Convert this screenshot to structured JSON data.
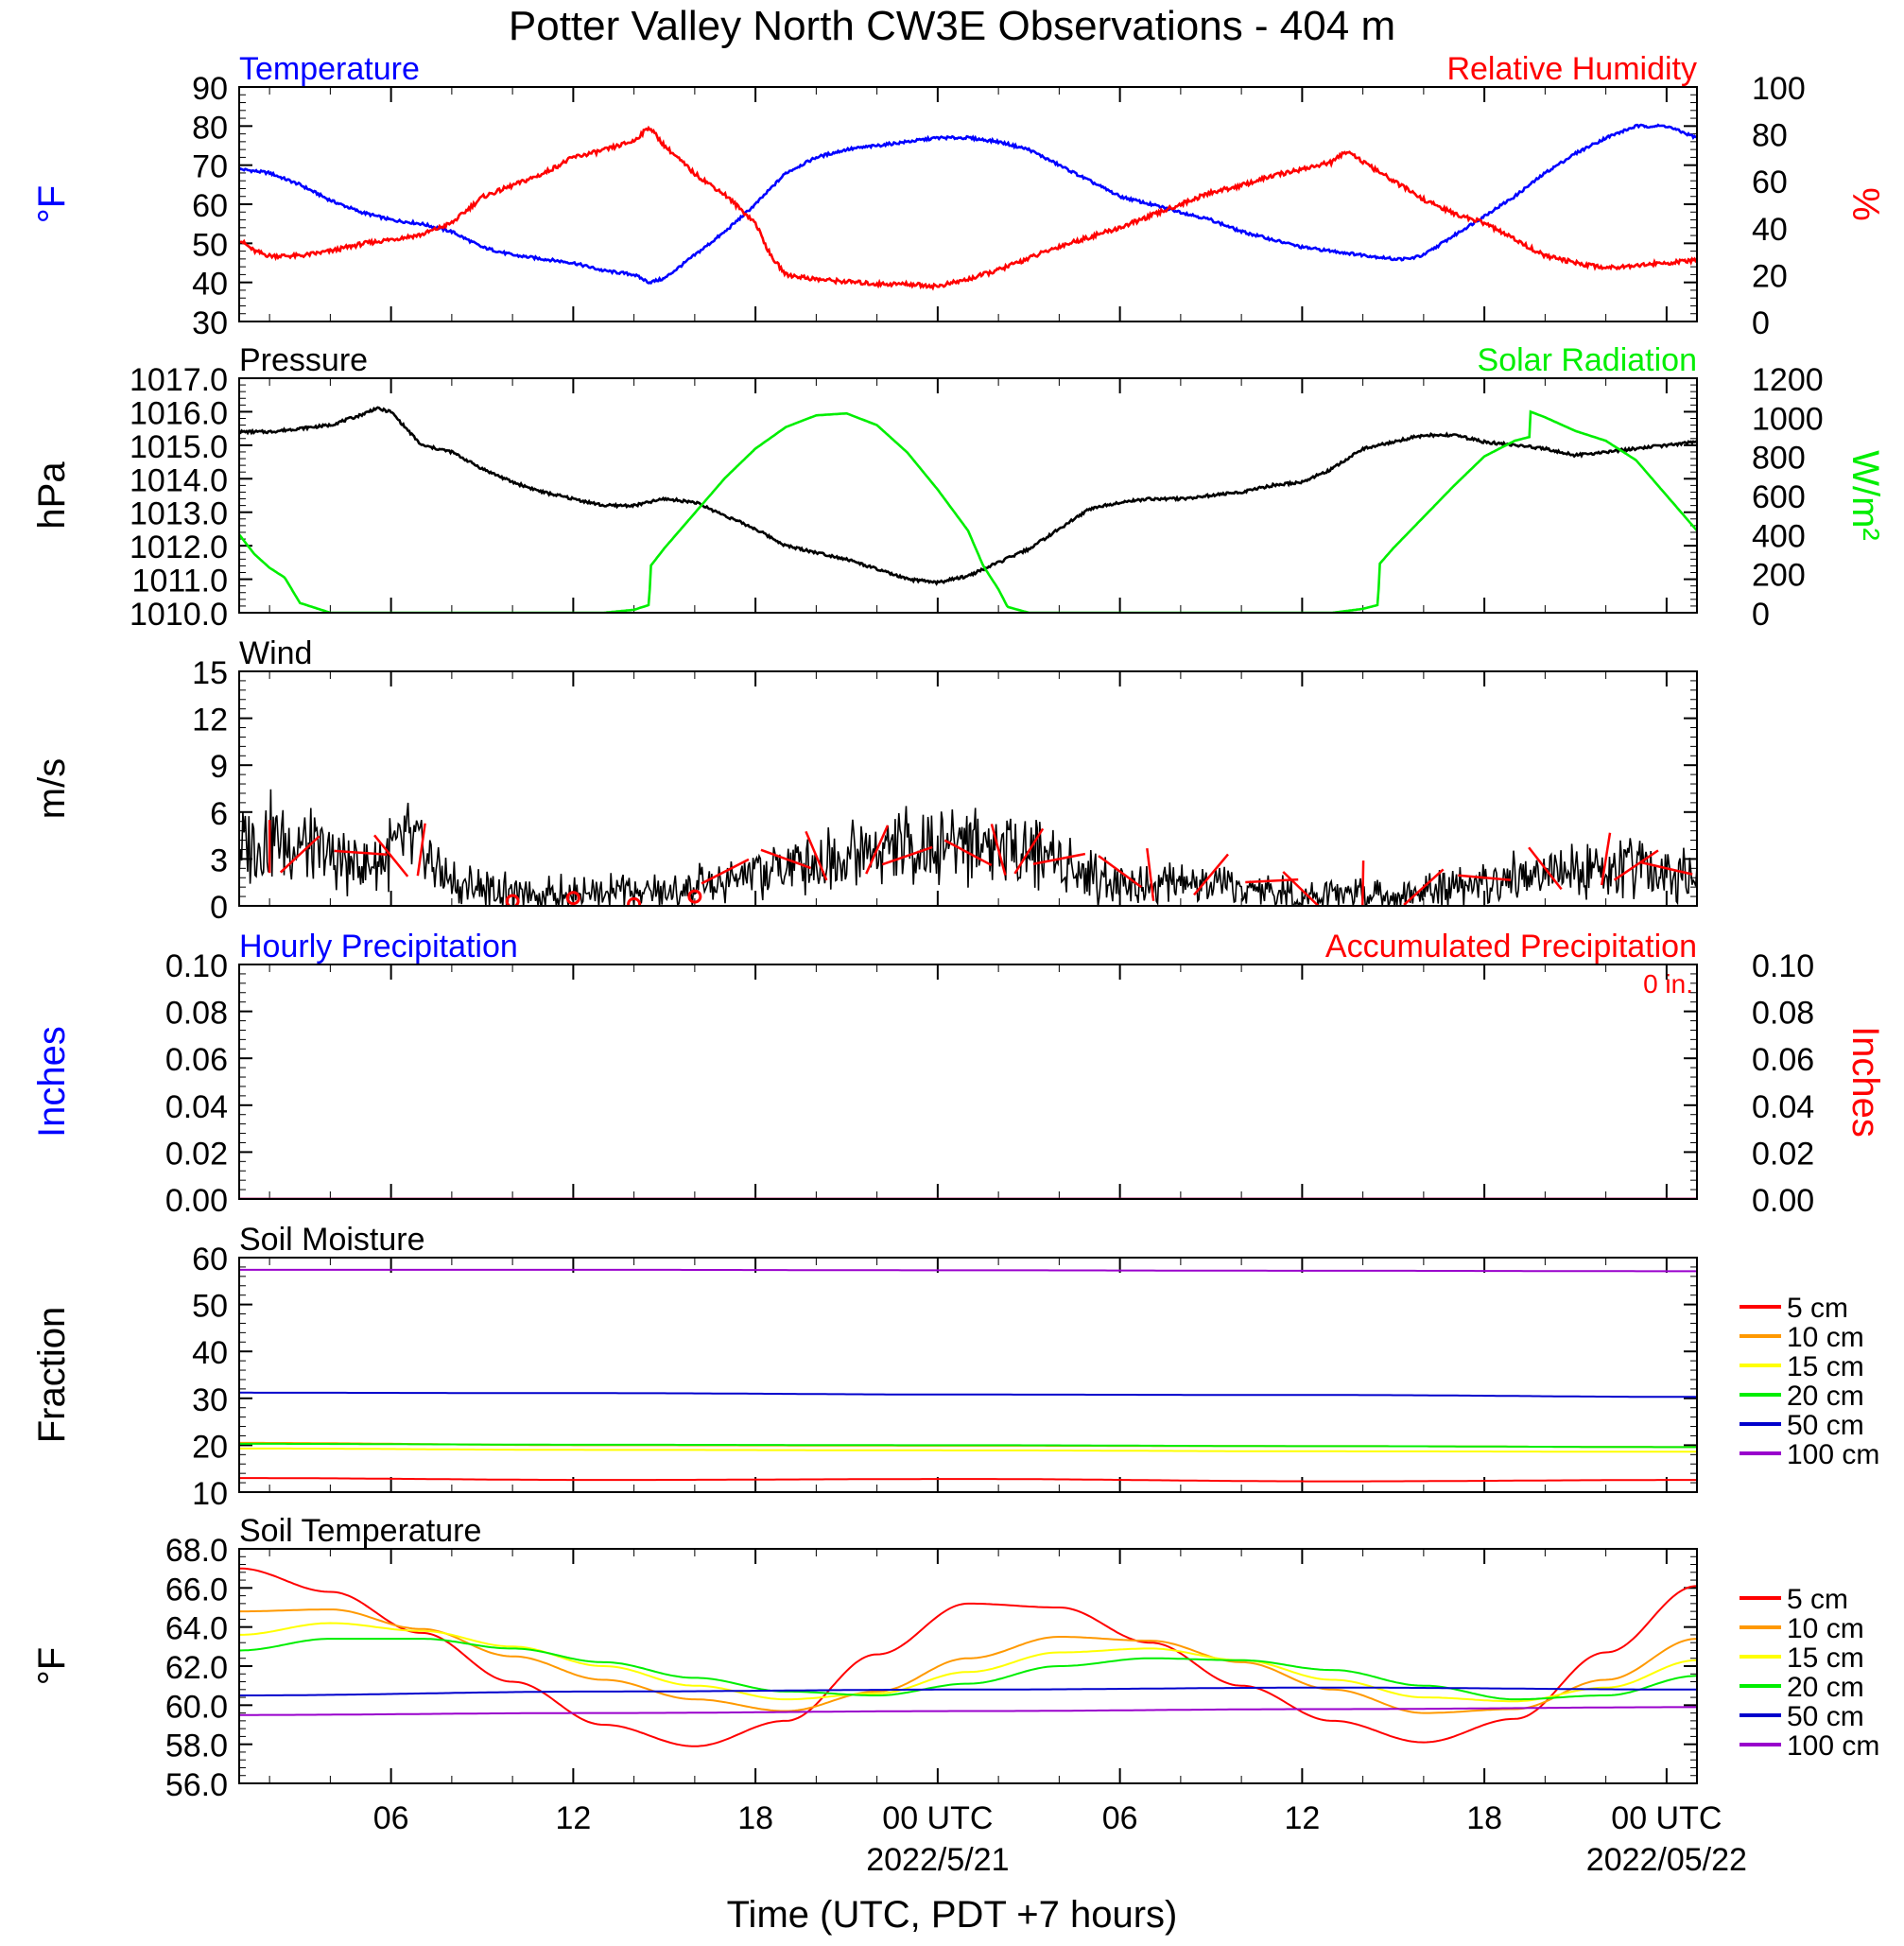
{
  "figure": {
    "title": "Potter Valley North CW3E Observations - 404 m",
    "xlabel": "Time (UTC, PDT +7 hours)"
  },
  "time_axis": {
    "unit": "hours since 2022-05-20 00 UTC",
    "range": [
      1,
      49
    ],
    "ticks": [
      {
        "label": "06",
        "sub": ""
      },
      {
        "label": "12",
        "sub": ""
      },
      {
        "label": "18",
        "sub": ""
      },
      {
        "label": "00 UTC",
        "sub": "2022/5/21"
      },
      {
        "label": "06",
        "sub": ""
      },
      {
        "label": "12",
        "sub": ""
      },
      {
        "label": "18",
        "sub": ""
      },
      {
        "label": "00 UTC",
        "sub": "2022/05/22"
      }
    ],
    "tick_hours": [
      6,
      12,
      18,
      24,
      30,
      36,
      42,
      48
    ]
  },
  "colors": {
    "blue": "#0000ff",
    "red": "#ff0000",
    "green": "#00ee00",
    "black": "#000000",
    "orange": "#ff9900",
    "yellow": "#ffff00",
    "purple": "#9900cc"
  },
  "chart_data": [
    {
      "type": "line",
      "title_left": "Temperature",
      "title_right": "Relative Humidity",
      "ylabel_left": "°F",
      "ylabel_right": "%",
      "ylim_left": [
        30,
        90
      ],
      "ylim_right": [
        0,
        100
      ],
      "yticks_left": [
        "30",
        "40",
        "50",
        "60",
        "70",
        "80",
        "90"
      ],
      "yticks_right": [
        "0",
        "20",
        "40",
        "60",
        "80",
        "100"
      ],
      "series": [
        {
          "name": "Temperature",
          "axis": "left",
          "color": "#0000ff",
          "x": [
            1,
            2,
            3,
            4,
            5,
            6,
            7,
            8,
            9,
            10,
            11,
            12,
            13,
            14,
            14.5,
            15,
            16,
            17,
            18,
            19,
            20,
            21,
            22,
            23,
            24,
            25,
            26,
            27,
            28,
            29,
            30,
            31,
            32,
            33,
            34,
            35,
            36,
            37,
            38,
            39,
            39.5,
            40,
            41,
            42,
            43,
            44,
            45,
            46,
            47,
            48,
            49
          ],
          "y": [
            69,
            68,
            65,
            61,
            58,
            56,
            55,
            53,
            49,
            47,
            46,
            45,
            43,
            42,
            40,
            41,
            47,
            53,
            60,
            68,
            72,
            74,
            75,
            76,
            77,
            77,
            76,
            74,
            70,
            66,
            62,
            60,
            58,
            56,
            53,
            51,
            49,
            48,
            47,
            46,
            46,
            47,
            52,
            57,
            62,
            68,
            73,
            77,
            80,
            80,
            77
          ]
        },
        {
          "name": "Relative Humidity",
          "axis": "right",
          "color": "#ff0000",
          "x": [
            1,
            1.5,
            2,
            3,
            4,
            5,
            6,
            7,
            8,
            9,
            10,
            11,
            12,
            13,
            14,
            14.5,
            15,
            16,
            17,
            18,
            18.5,
            19,
            20,
            21,
            22,
            23,
            24,
            25,
            26,
            27,
            28,
            29,
            30,
            31,
            32,
            33,
            34,
            35,
            36,
            37,
            37.5,
            38,
            39,
            40,
            41,
            42,
            43,
            44,
            45,
            46,
            47,
            48,
            49
          ],
          "y": [
            35,
            30,
            28,
            28,
            30,
            33,
            35,
            37,
            42,
            53,
            58,
            63,
            70,
            73,
            77,
            83,
            75,
            63,
            54,
            42,
            28,
            20,
            18,
            17,
            16,
            16,
            15,
            18,
            22,
            27,
            32,
            36,
            40,
            45,
            50,
            55,
            58,
            62,
            65,
            68,
            73,
            68,
            60,
            52,
            46,
            42,
            35,
            28,
            25,
            23,
            24,
            25,
            26
          ]
        }
      ]
    },
    {
      "type": "line",
      "title_left": "Pressure",
      "title_right": "Solar Radiation",
      "ylabel_left": "hPa",
      "ylabel_right": "W/m²",
      "ylim_left": [
        1010,
        1017
      ],
      "ylim_right": [
        0,
        1200
      ],
      "yticks_left": [
        "1010.0",
        "1011.0",
        "1012.0",
        "1013.0",
        "1014.0",
        "1015.0",
        "1016.0",
        "1017.0"
      ],
      "yticks_right": [
        "0",
        "200",
        "400",
        "600",
        "800",
        "1000",
        "1200"
      ],
      "series": [
        {
          "name": "Pressure",
          "axis": "left",
          "color": "#000000",
          "x": [
            1,
            2,
            3,
            4,
            5,
            5.5,
            6,
            6.5,
            7,
            8,
            9,
            10,
            11,
            12,
            13,
            14,
            15,
            16,
            17,
            18,
            19,
            20,
            21,
            22,
            23,
            24,
            25,
            26,
            27,
            28,
            29,
            30,
            31,
            32,
            33,
            34,
            35,
            36,
            37,
            38,
            39,
            40,
            41,
            42,
            43,
            44,
            45,
            46,
            47,
            48,
            49
          ],
          "y": [
            1015.4,
            1015.4,
            1015.5,
            1015.6,
            1015.9,
            1016.1,
            1016.0,
            1015.5,
            1015.0,
            1014.8,
            1014.3,
            1013.9,
            1013.6,
            1013.4,
            1013.2,
            1013.2,
            1013.4,
            1013.3,
            1012.9,
            1012.5,
            1012.0,
            1011.8,
            1011.6,
            1011.3,
            1011.0,
            1010.9,
            1011.1,
            1011.5,
            1011.9,
            1012.5,
            1013.1,
            1013.3,
            1013.4,
            1013.4,
            1013.5,
            1013.6,
            1013.8,
            1013.9,
            1014.3,
            1014.9,
            1015.1,
            1015.3,
            1015.3,
            1015.1,
            1015.0,
            1014.9,
            1014.7,
            1014.8,
            1014.9,
            1015.0,
            1015.1
          ]
        },
        {
          "name": "Solar Radiation",
          "axis": "right",
          "color": "#00ee00",
          "x": [
            1,
            1.5,
            2,
            2.5,
            3,
            4,
            6,
            8,
            10,
            12,
            13,
            14,
            14.5,
            14.55,
            15,
            16,
            17,
            18,
            19,
            20,
            21,
            22,
            23,
            24,
            25,
            25.5,
            26,
            26.3,
            27,
            30,
            35,
            37,
            38,
            38.5,
            38.55,
            39,
            40,
            41,
            42,
            43,
            43.5,
            43.5,
            44,
            45,
            46,
            47,
            48,
            49
          ],
          "y": [
            400,
            300,
            230,
            180,
            50,
            0,
            0,
            0,
            0,
            0,
            0,
            15,
            40,
            240,
            330,
            510,
            690,
            840,
            950,
            1010,
            1020,
            960,
            820,
            630,
            420,
            240,
            120,
            30,
            0,
            0,
            0,
            0,
            20,
            40,
            250,
            330,
            490,
            650,
            800,
            880,
            900,
            1030,
            1000,
            930,
            880,
            780,
            600,
            420
          ]
        }
      ]
    },
    {
      "type": "line",
      "title_left": "Wind",
      "ylabel_left": "m/s",
      "ylim_left": [
        0,
        15
      ],
      "yticks_left": [
        "0",
        "3",
        "6",
        "9",
        "12",
        "15"
      ],
      "series": [
        {
          "name": "Wind",
          "axis": "left",
          "color": "#000000",
          "x": [
            1,
            2,
            3,
            4,
            5,
            6,
            6.5,
            7,
            8,
            9,
            10,
            11,
            12,
            13,
            14,
            15,
            16,
            17,
            18,
            19,
            20,
            21,
            22,
            23,
            24,
            25,
            26,
            27,
            28,
            29,
            30,
            31,
            32,
            33,
            34,
            35,
            36,
            37,
            38,
            39,
            40,
            41,
            42,
            43,
            44,
            45,
            46,
            47,
            48,
            49
          ],
          "y": [
            3.5,
            4.5,
            4.0,
            3.0,
            2.5,
            3.5,
            4.0,
            3.5,
            1.5,
            1.0,
            0.8,
            0.8,
            0.7,
            0.8,
            0.8,
            1.0,
            1.2,
            1.4,
            2.0,
            2.5,
            3.0,
            3.2,
            3.5,
            3.8,
            4.0,
            4.2,
            4.0,
            3.8,
            3.0,
            2.0,
            1.5,
            1.4,
            1.5,
            1.2,
            1.0,
            0.9,
            0.8,
            0.8,
            0.8,
            0.7,
            0.8,
            1.2,
            1.5,
            1.8,
            2.0,
            2.2,
            2.5,
            2.4,
            2.2,
            2.0
          ]
        },
        {
          "name": "Wind barbs",
          "axis": "left",
          "color": "#ff0000",
          "x": [
            2,
            3,
            5,
            6,
            7,
            10,
            12,
            14,
            16,
            17,
            19,
            20,
            22,
            23,
            25,
            26,
            27,
            28,
            30,
            31,
            33,
            35,
            36,
            38,
            40,
            42,
            44,
            46,
            47,
            48
          ],
          "y": [
            3.8,
            3.3,
            3.4,
            3.2,
            3.6,
            0.3,
            0.5,
            0.1,
            0.6,
            2.2,
            3.0,
            3.2,
            3.6,
            3.2,
            3.4,
            3.6,
            3.5,
            3.0,
            2.2,
            2.0,
            2.0,
            1.6,
            1.0,
            1.2,
            1.2,
            1.8,
            2.4,
            3.0,
            2.6,
            2.4
          ]
        }
      ]
    },
    {
      "type": "line",
      "title_left": "Hourly Precipitation",
      "title_right": "Accumulated Precipitation",
      "annotation": "0 in.",
      "ylabel_left": "Inches",
      "ylabel_right": "Inches",
      "ylim_left": [
        0,
        0.1
      ],
      "ylim_right": [
        0,
        0.1
      ],
      "yticks_left": [
        "0.00",
        "0.02",
        "0.04",
        "0.06",
        "0.08",
        "0.10"
      ],
      "yticks_right": [
        "0.00",
        "0.02",
        "0.04",
        "0.06",
        "0.08",
        "0.10"
      ],
      "series": [
        {
          "name": "Hourly Precipitation",
          "axis": "left",
          "color": "#0000ff",
          "x": [
            1,
            49
          ],
          "y": [
            0,
            0
          ]
        },
        {
          "name": "Accumulated Precipitation",
          "axis": "right",
          "color": "#ff0000",
          "x": [
            1,
            49
          ],
          "y": [
            0,
            0
          ]
        }
      ]
    },
    {
      "type": "line",
      "title_left": "Soil Moisture",
      "ylabel_left": "Fraction",
      "ylim_left": [
        10,
        60
      ],
      "yticks_left": [
        "10",
        "20",
        "30",
        "40",
        "50",
        "60"
      ],
      "legend": "right",
      "series": [
        {
          "name": "5 cm",
          "color": "#ff0000",
          "x": [
            1,
            13,
            25,
            37,
            49
          ],
          "y": [
            13.0,
            12.6,
            12.8,
            12.3,
            12.6
          ]
        },
        {
          "name": "10 cm",
          "color": "#ff9900",
          "x": [
            1,
            13,
            25,
            37,
            49
          ],
          "y": [
            20.5,
            20.0,
            19.9,
            19.8,
            19.6
          ]
        },
        {
          "name": "15 cm",
          "color": "#ffff00",
          "x": [
            1,
            13,
            25,
            37,
            49
          ],
          "y": [
            19.3,
            19.0,
            18.9,
            18.7,
            18.6
          ]
        },
        {
          "name": "20 cm",
          "color": "#00ee00",
          "x": [
            1,
            13,
            25,
            37,
            49
          ],
          "y": [
            20.3,
            20.1,
            20.0,
            19.8,
            19.6
          ]
        },
        {
          "name": "50 cm",
          "color": "#0000cc",
          "x": [
            1,
            13,
            25,
            37,
            49
          ],
          "y": [
            31.2,
            31.1,
            30.8,
            30.7,
            30.3
          ]
        },
        {
          "name": "100 cm",
          "color": "#9900cc",
          "x": [
            1,
            13,
            25,
            37,
            49
          ],
          "y": [
            57.4,
            57.4,
            57.3,
            57.2,
            57.1
          ]
        }
      ]
    },
    {
      "type": "line",
      "title_left": "Soil Temperature",
      "ylabel_left": "°F",
      "ylim_left": [
        56,
        68
      ],
      "yticks_left": [
        "56.0",
        "58.0",
        "60.0",
        "62.0",
        "64.0",
        "66.0",
        "68.0"
      ],
      "legend": "right",
      "series": [
        {
          "name": "5 cm",
          "color": "#ff0000",
          "x": [
            1,
            4,
            7,
            10,
            13,
            16,
            19,
            22,
            25,
            28,
            31,
            34,
            37,
            40,
            43,
            46,
            49
          ],
          "y": [
            67.0,
            65.8,
            63.7,
            61.2,
            59.0,
            57.9,
            59.2,
            62.6,
            65.2,
            65.0,
            63.2,
            61.0,
            59.2,
            58.1,
            59.3,
            62.7,
            66.1
          ]
        },
        {
          "name": "10 cm",
          "color": "#ff9900",
          "x": [
            1,
            4,
            7,
            10,
            13,
            16,
            19,
            22,
            25,
            28,
            31,
            34,
            37,
            40,
            43,
            46,
            49
          ],
          "y": [
            64.8,
            64.9,
            63.9,
            62.5,
            61.3,
            60.3,
            59.7,
            60.7,
            62.4,
            63.5,
            63.3,
            62.2,
            60.8,
            59.6,
            59.8,
            61.3,
            63.4
          ]
        },
        {
          "name": "15 cm",
          "color": "#ffff00",
          "x": [
            1,
            4,
            7,
            10,
            13,
            16,
            19,
            22,
            25,
            28,
            31,
            34,
            37,
            40,
            43,
            46,
            49
          ],
          "y": [
            63.6,
            64.2,
            63.8,
            63.0,
            62.0,
            61.0,
            60.3,
            60.6,
            61.7,
            62.7,
            62.9,
            62.3,
            61.3,
            60.4,
            60.2,
            60.9,
            62.3
          ]
        },
        {
          "name": "20 cm",
          "color": "#00ee00",
          "x": [
            1,
            4,
            7,
            10,
            13,
            16,
            19,
            22,
            25,
            28,
            31,
            34,
            37,
            40,
            43,
            46,
            49
          ],
          "y": [
            62.8,
            63.4,
            63.4,
            62.9,
            62.2,
            61.4,
            60.7,
            60.5,
            61.1,
            62.0,
            62.4,
            62.3,
            61.8,
            61.0,
            60.3,
            60.5,
            61.5
          ]
        },
        {
          "name": "50 cm",
          "color": "#0000cc",
          "x": [
            1,
            13,
            25,
            37,
            49
          ],
          "y": [
            60.5,
            60.7,
            60.8,
            60.9,
            60.8
          ]
        },
        {
          "name": "100 cm",
          "color": "#9900cc",
          "x": [
            1,
            13,
            25,
            37,
            49
          ],
          "y": [
            59.5,
            59.6,
            59.7,
            59.8,
            59.9
          ]
        }
      ]
    }
  ]
}
